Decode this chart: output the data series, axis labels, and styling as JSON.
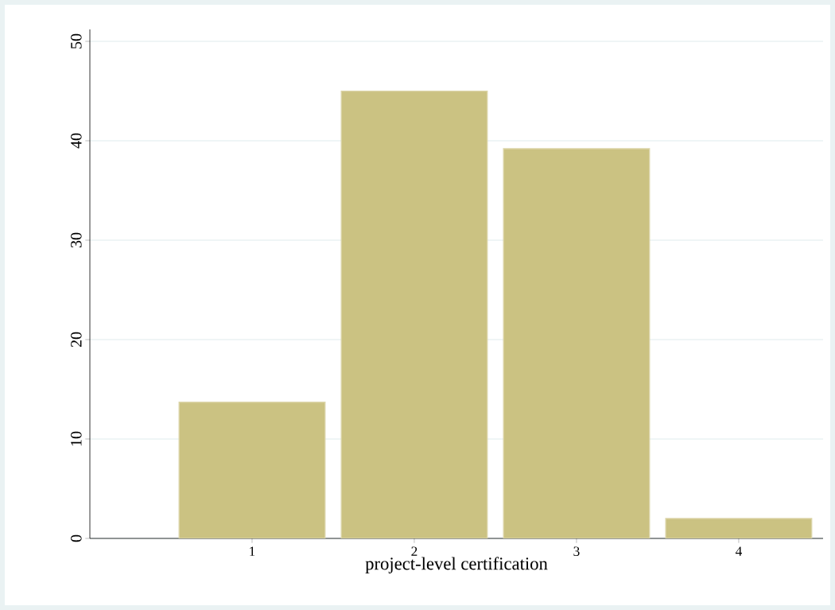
{
  "chart_data": {
    "type": "bar",
    "xlabel": "project-level certification",
    "x": [
      1,
      2,
      3,
      4
    ],
    "values": [
      13.7,
      45.0,
      39.2,
      2.0
    ],
    "color": "#cbc282",
    "xlim": [
      0,
      4.52
    ],
    "xticks": [
      1,
      2,
      3,
      4
    ],
    "ylim": [
      0,
      51.2
    ],
    "yticks": [
      0,
      10,
      20,
      30,
      40,
      50
    ],
    "grid": "y"
  }
}
